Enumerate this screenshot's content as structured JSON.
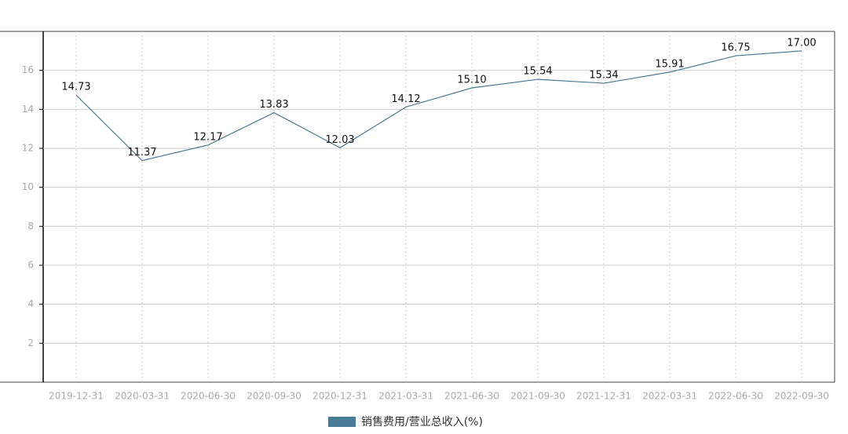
{
  "chart_data": {
    "type": "line",
    "categories": [
      "2019-12-31",
      "2020-03-31",
      "2020-06-30",
      "2020-09-30",
      "2020-12-31",
      "2021-03-31",
      "2021-06-30",
      "2021-09-30",
      "2021-12-31",
      "2022-03-31",
      "2022-06-30",
      "2022-09-30"
    ],
    "series": [
      {
        "name": "销售费用/营业总收入(%)",
        "color": "#4a7b96",
        "values": [
          14.73,
          11.37,
          12.17,
          13.83,
          12.03,
          14.12,
          15.1,
          15.54,
          15.34,
          15.91,
          16.75,
          17.0
        ],
        "value_labels": [
          "14.73",
          "11.37",
          "12.17",
          "13.83",
          "12.03",
          "14.12",
          "15.10",
          "15.54",
          "15.34",
          "15.91",
          "16.75",
          "17.00"
        ]
      }
    ],
    "ylim": [
      0,
      18
    ],
    "yticks": [
      2,
      4,
      6,
      8,
      10,
      12,
      14,
      16
    ],
    "grid": true
  }
}
